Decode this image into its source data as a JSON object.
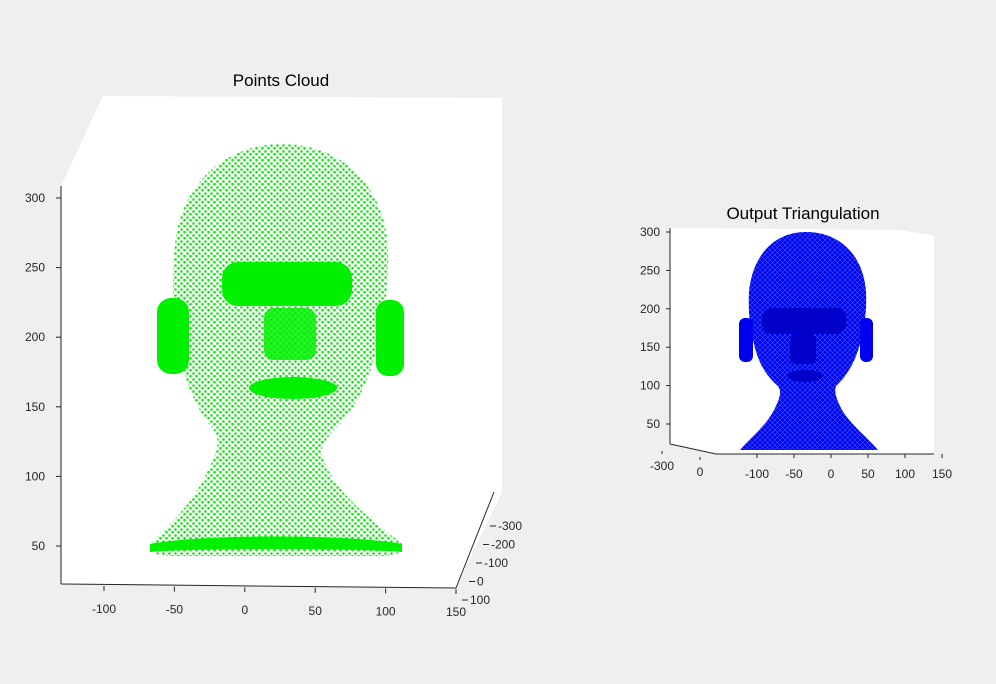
{
  "colors": {
    "background": "#efefef",
    "cloud": "#00f000",
    "mesh": "#0000ff",
    "axis": "#262626",
    "plot_bg": "#ffffff"
  },
  "chart_data": [
    {
      "type": "scatter",
      "title": "Points Cloud",
      "projection": "3d",
      "marker_color": "#00f000",
      "x_ticks": [
        "-100",
        "-50",
        "0",
        "50",
        "100",
        "150"
      ],
      "y_ticks": [
        "-300",
        "-200",
        "-100",
        "0",
        "100"
      ],
      "z_ticks": [
        "50",
        "100",
        "150",
        "200",
        "250",
        "300"
      ],
      "xlim": [
        -130,
        150
      ],
      "zlim": [
        35,
        300
      ],
      "grid": false,
      "series": [
        {
          "values": "head-shaped surface points (dense 3D point cloud)"
        }
      ]
    },
    {
      "type": "mesh",
      "title": "Output Triangulation",
      "projection": "3d",
      "edge_color": "#0000ff",
      "x_ticks": [
        "-100",
        "-50",
        "0",
        "50",
        "100",
        "150"
      ],
      "y_ticks": [
        "-300",
        "0"
      ],
      "z_ticks": [
        "50",
        "100",
        "150",
        "200",
        "250",
        "300"
      ],
      "xlim": [
        -130,
        150
      ],
      "zlim": [
        20,
        300
      ],
      "grid": false
    }
  ]
}
